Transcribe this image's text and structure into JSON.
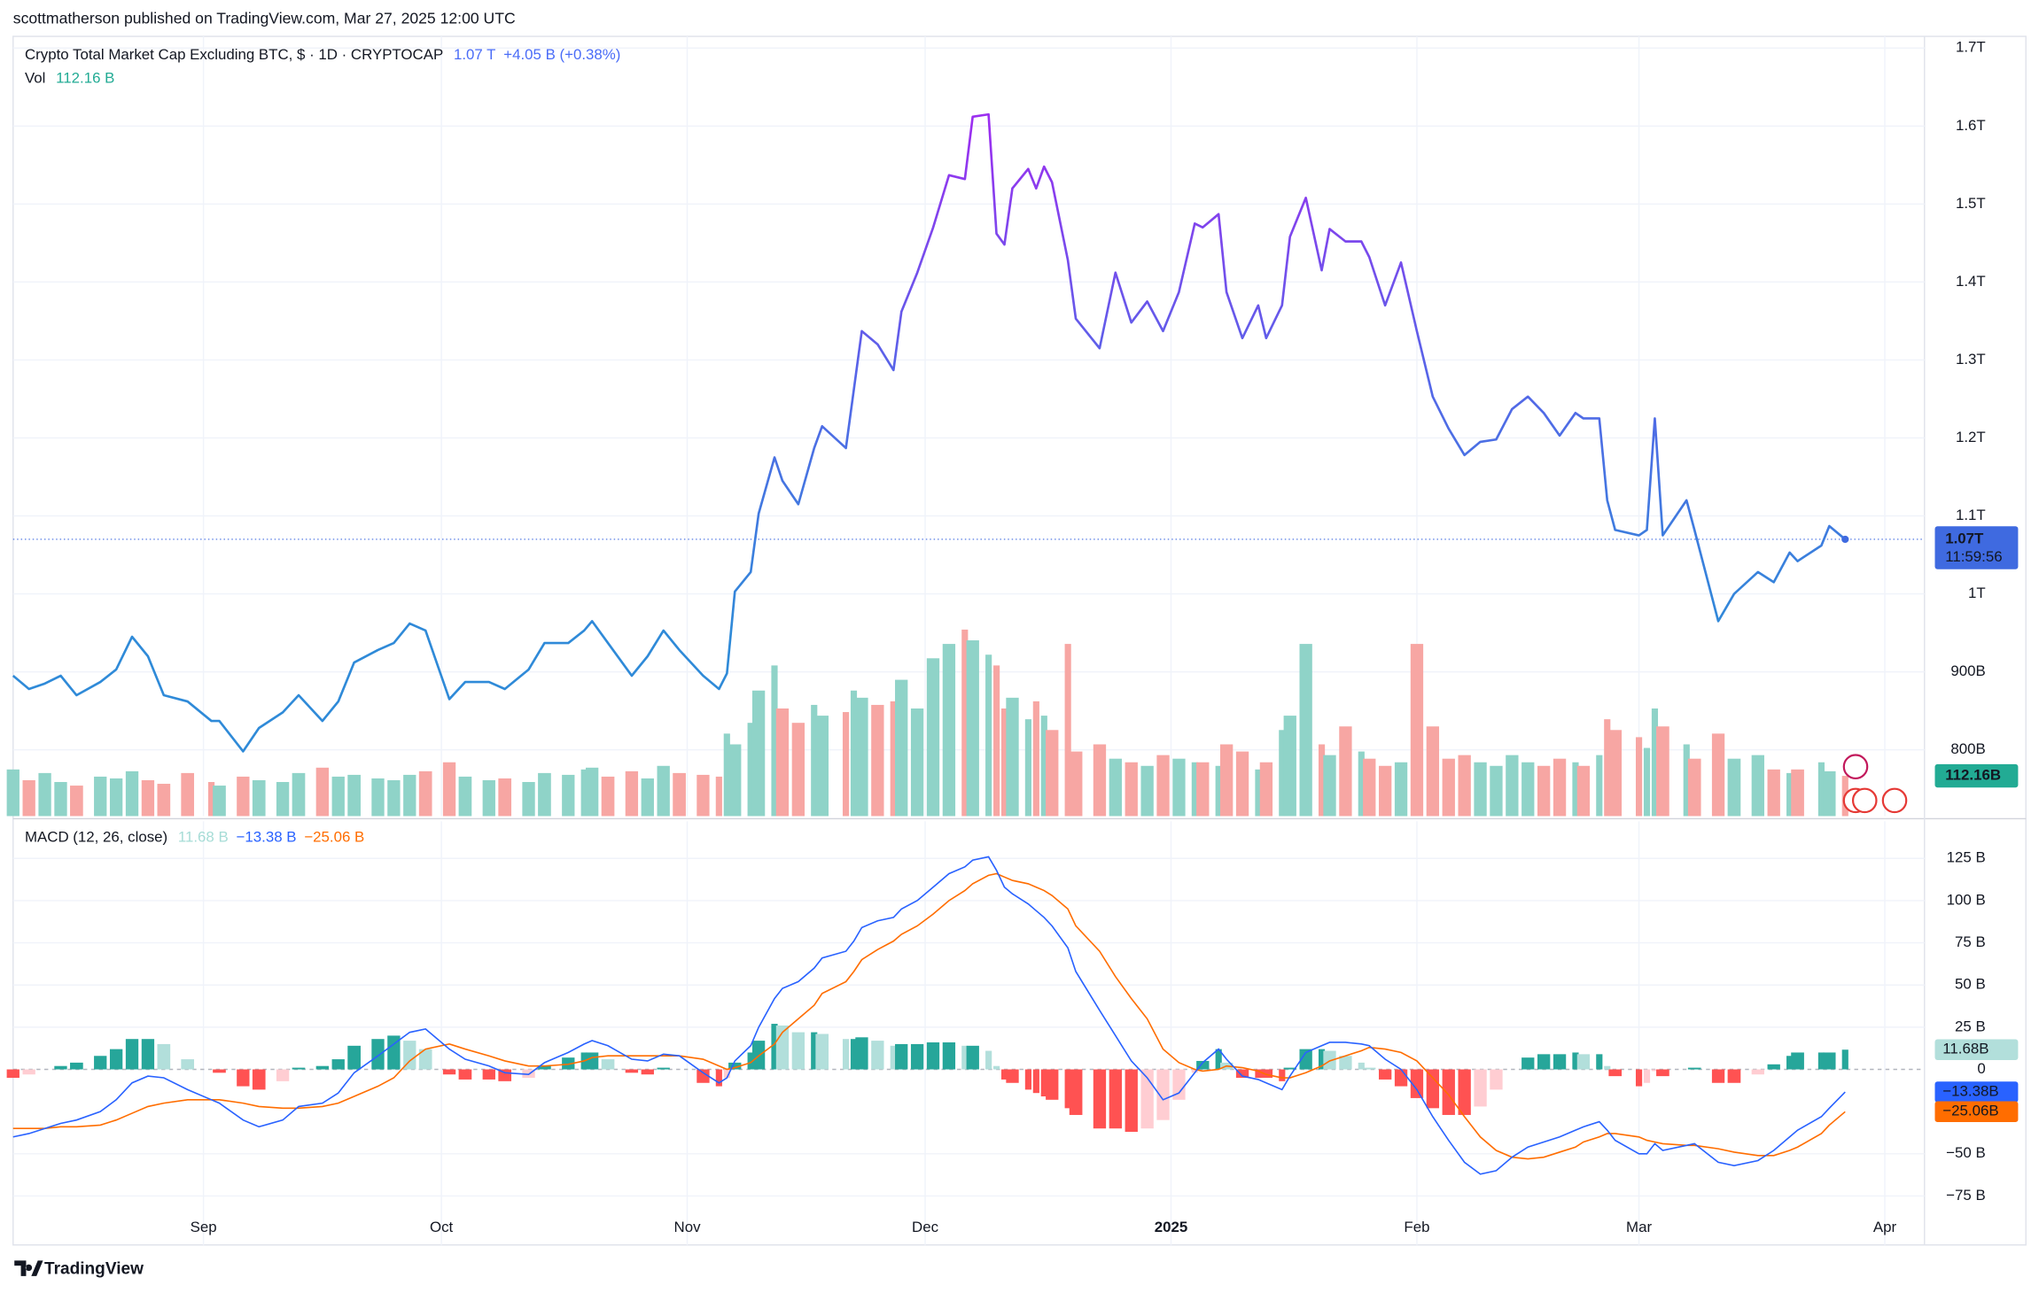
{
  "header": {
    "publisher": "scottmatherson published on TradingView.com, Mar 27, 2025 12:00 UTC",
    "brand": "TradingView"
  },
  "chart_data": [
    {
      "type": "line",
      "title": "Crypto Total Market Cap Excluding BTC, $ · 1D · CRYPTOCAP",
      "last_label": "1.07 T",
      "change_label": "+4.05 B (+0.38%)",
      "tag_label": "1.07T",
      "countdown": "11:59:56",
      "tag_color": "#3f6ae0",
      "colors": [
        "#2f8ad8",
        "#5566e8",
        "#9b2ff0"
      ],
      "x": [
        "2024-08-08",
        "2024-08-10",
        "2024-08-12",
        "2024-08-14",
        "2024-08-16",
        "2024-08-19",
        "2024-08-21",
        "2024-08-23",
        "2024-08-25",
        "2024-08-27",
        "2024-08-30",
        "2024-09-02",
        "2024-09-03",
        "2024-09-06",
        "2024-09-08",
        "2024-09-11",
        "2024-09-13",
        "2024-09-16",
        "2024-09-18",
        "2024-09-20",
        "2024-09-23",
        "2024-09-25",
        "2024-09-27",
        "2024-09-29",
        "2024-10-02",
        "2024-10-04",
        "2024-10-07",
        "2024-10-09",
        "2024-10-12",
        "2024-10-14",
        "2024-10-17",
        "2024-10-19",
        "2024-10-20",
        "2024-10-22",
        "2024-10-25",
        "2024-10-27",
        "2024-10-29",
        "2024-10-31",
        "2024-11-03",
        "2024-11-05",
        "2024-11-06",
        "2024-11-07",
        "2024-11-09",
        "2024-11-10",
        "2024-11-12",
        "2024-11-13",
        "2024-11-15",
        "2024-11-17",
        "2024-11-18",
        "2024-11-21",
        "2024-11-22",
        "2024-11-23",
        "2024-11-25",
        "2024-11-27",
        "2024-11-28",
        "2024-11-30",
        "2024-12-02",
        "2024-12-04",
        "2024-12-06",
        "2024-12-07",
        "2024-12-09",
        "2024-12-10",
        "2024-12-11",
        "2024-12-12",
        "2024-12-14",
        "2024-12-15",
        "2024-12-16",
        "2024-12-17",
        "2024-12-19",
        "2024-12-20",
        "2024-12-23",
        "2024-12-25",
        "2024-12-27",
        "2024-12-29",
        "2024-12-31",
        "2025-01-02",
        "2025-01-04",
        "2025-01-05",
        "2025-01-07",
        "2025-01-08",
        "2025-01-10",
        "2025-01-12",
        "2025-01-13",
        "2025-01-15",
        "2025-01-16",
        "2025-01-18",
        "2025-01-20",
        "2025-01-21",
        "2025-01-23",
        "2025-01-25",
        "2025-01-26",
        "2025-01-28",
        "2025-01-30",
        "2025-02-01",
        "2025-02-03",
        "2025-02-05",
        "2025-02-07",
        "2025-02-09",
        "2025-02-11",
        "2025-02-13",
        "2025-02-15",
        "2025-02-17",
        "2025-02-19",
        "2025-02-21",
        "2025-02-22",
        "2025-02-24",
        "2025-02-25",
        "2025-02-26",
        "2025-03-01",
        "2025-03-02",
        "2025-03-03",
        "2025-03-04",
        "2025-03-07",
        "2025-03-08",
        "2025-03-11",
        "2025-03-13",
        "2025-03-16",
        "2025-03-18",
        "2025-03-20",
        "2025-03-21",
        "2025-03-24",
        "2025-03-25",
        "2025-03-27"
      ],
      "values": [
        895,
        878,
        885,
        895,
        870,
        887,
        903,
        945,
        920,
        870,
        862,
        837,
        837,
        798,
        828,
        848,
        870,
        837,
        862,
        912,
        928,
        937,
        962,
        953,
        865,
        887,
        887,
        878,
        903,
        937,
        937,
        953,
        965,
        937,
        895,
        920,
        953,
        928,
        895,
        878,
        898,
        1003,
        1028,
        1103,
        1175,
        1145,
        1115,
        1187,
        1215,
        1187,
        1262,
        1337,
        1320,
        1287,
        1362,
        1412,
        1470,
        1537,
        1532,
        1612,
        1615,
        1462,
        1448,
        1520,
        1545,
        1520,
        1548,
        1528,
        1428,
        1353,
        1315,
        1412,
        1348,
        1375,
        1337,
        1387,
        1475,
        1470,
        1487,
        1387,
        1328,
        1370,
        1328,
        1370,
        1458,
        1508,
        1415,
        1468,
        1452,
        1452,
        1432,
        1370,
        1425,
        1337,
        1253,
        1212,
        1178,
        1195,
        1198,
        1237,
        1253,
        1232,
        1203,
        1232,
        1225,
        1225,
        1120,
        1082,
        1075,
        1082,
        1225,
        1075,
        1120,
        1082,
        965,
        1000,
        1028,
        1015,
        1053,
        1042,
        1062,
        1087,
        1070
      ],
      "xlim": [
        "2024-08-08",
        "2025-04-06"
      ],
      "xticks": [
        {
          "value": "2024-09-01",
          "label": "Sep"
        },
        {
          "value": "2024-10-01",
          "label": "Oct"
        },
        {
          "value": "2024-11-01",
          "label": "Nov"
        },
        {
          "value": "2024-12-01",
          "label": "Dec"
        },
        {
          "value": "2025-01-01",
          "label": "2025"
        },
        {
          "value": "2025-02-01",
          "label": "Feb"
        },
        {
          "value": "2025-03-01",
          "label": "Mar"
        },
        {
          "value": "2025-04-01",
          "label": "Apr"
        }
      ],
      "ylim": [
        715,
        1715
      ],
      "yticks": [
        {
          "value": 1700,
          "label": "1.7T"
        },
        {
          "value": 1600,
          "label": "1.6T"
        },
        {
          "value": 1500,
          "label": "1.5T"
        },
        {
          "value": 1400,
          "label": "1.4T"
        },
        {
          "value": 1300,
          "label": "1.3T"
        },
        {
          "value": 1200,
          "label": "1.2T"
        },
        {
          "value": 1100,
          "label": "1.1T"
        },
        {
          "value": 1000,
          "label": "1T"
        },
        {
          "value": 900,
          "label": "900B"
        },
        {
          "value": 800,
          "label": "800B"
        }
      ],
      "grid": true
    },
    {
      "type": "bar",
      "title": "Vol",
      "last_label": "112.16 B",
      "tag_label": "112.16B",
      "tag_color": "#22ab94",
      "up_color": "#8fd3c8",
      "down_color": "#f7a6a3",
      "values": [
        130,
        100,
        120,
        95,
        85,
        110,
        105,
        125,
        100,
        90,
        120,
        95,
        85,
        110,
        100,
        95,
        120,
        135,
        110,
        115,
        105,
        100,
        115,
        125,
        150,
        110,
        100,
        105,
        95,
        120,
        115,
        130,
        135,
        110,
        125,
        105,
        140,
        120,
        115,
        110,
        230,
        200,
        260,
        350,
        420,
        300,
        260,
        310,
        280,
        290,
        350,
        330,
        310,
        320,
        380,
        300,
        440,
        480,
        520,
        490,
        450,
        420,
        300,
        330,
        270,
        320,
        280,
        240,
        480,
        180,
        200,
        160,
        150,
        140,
        170,
        160,
        150,
        150,
        140,
        200,
        180,
        130,
        150,
        240,
        280,
        480,
        200,
        170,
        250,
        180,
        160,
        140,
        150,
        480,
        250,
        160,
        170,
        150,
        140,
        170,
        150,
        140,
        160,
        150,
        140,
        170,
        270,
        240,
        220,
        190,
        300,
        250,
        200,
        160,
        230,
        160,
        170,
        130,
        120,
        130,
        150,
        125,
        112.16
      ]
    },
    {
      "type": "macd",
      "title": "MACD (12, 26, close)",
      "histogram": {
        "colors": [
          "#26a69a",
          "#b2dfdb",
          "#ffcdd2",
          "#ff5252"
        ],
        "last_label": "11.68 B",
        "tag_label": "11.68B",
        "tag_color": "#b2dfdb",
        "values": [
          -5,
          -3,
          0,
          2,
          4,
          8,
          12,
          18,
          18,
          15,
          6,
          0,
          -2,
          -10,
          -12,
          -7,
          1,
          2,
          6,
          14,
          18,
          20,
          17,
          12,
          -3,
          -6,
          -6,
          -7,
          -5,
          2,
          7,
          10,
          10,
          6,
          -2,
          -3,
          1,
          0,
          -8,
          -10,
          -5,
          4,
          10,
          17,
          27,
          26,
          22,
          22,
          21,
          18,
          18,
          19,
          17,
          14,
          15,
          15,
          16,
          16,
          14,
          14,
          11,
          2,
          -6,
          -8,
          -12,
          -14,
          -16,
          -18,
          -23,
          -27,
          -35,
          -35,
          -37,
          -35,
          -30,
          -18,
          -2,
          5,
          12,
          4,
          -5,
          -5,
          -5,
          -7,
          1,
          12,
          12,
          11,
          8,
          4,
          1,
          -6,
          -10,
          -17,
          -23,
          -27,
          -27,
          -22,
          -12,
          0,
          7,
          9,
          9,
          10,
          9,
          9,
          2,
          -4,
          -10,
          -8,
          -1,
          -4,
          0,
          1,
          -8,
          -8,
          -3,
          3,
          8,
          10,
          10,
          10,
          11.68
        ]
      },
      "macd": {
        "color": "#2962ff",
        "last_label": "−13.38 B",
        "tag_label": "−13.38B",
        "values": [
          -40,
          -38,
          -35,
          -32,
          -30,
          -25,
          -18,
          -8,
          -4,
          -5,
          -12,
          -18,
          -20,
          -30,
          -34,
          -30,
          -22,
          -20,
          -14,
          -2,
          8,
          15,
          22,
          24,
          12,
          6,
          2,
          -2,
          -3,
          4,
          10,
          15,
          17,
          14,
          6,
          5,
          9,
          8,
          -2,
          -8,
          -5,
          5,
          14,
          25,
          42,
          48,
          52,
          60,
          66,
          70,
          76,
          84,
          88,
          90,
          95,
          100,
          108,
          116,
          120,
          124,
          126,
          118,
          108,
          104,
          98,
          94,
          90,
          85,
          72,
          58,
          35,
          20,
          5,
          -5,
          -18,
          -14,
          -2,
          4,
          12,
          6,
          -4,
          -6,
          -8,
          -12,
          -4,
          10,
          14,
          16,
          16,
          15,
          14,
          6,
          0,
          -12,
          -28,
          -42,
          -55,
          -62,
          -60,
          -52,
          -46,
          -43,
          -40,
          -36,
          -34,
          -31,
          -36,
          -42,
          -50,
          -50,
          -44,
          -48,
          -45,
          -44,
          -55,
          -57,
          -54,
          -48,
          -40,
          -36,
          -28,
          -23,
          -13.38
        ]
      },
      "signal": {
        "color": "#ff6d00",
        "last_label": "−25.06 B",
        "tag_label": "−25.06B",
        "values": [
          -35,
          -35,
          -35,
          -34,
          -34,
          -33,
          -30,
          -26,
          -22,
          -20,
          -18,
          -18,
          -18,
          -20,
          -22,
          -23,
          -23,
          -22,
          -20,
          -16,
          -10,
          -5,
          5,
          12,
          15,
          12,
          8,
          5,
          2,
          2,
          3,
          5,
          7,
          8,
          8,
          8,
          8,
          8,
          6,
          2,
          0,
          1,
          4,
          8,
          15,
          22,
          30,
          38,
          45,
          52,
          58,
          65,
          71,
          76,
          80,
          85,
          92,
          100,
          106,
          110,
          115,
          116,
          114,
          112,
          110,
          108,
          106,
          103,
          95,
          85,
          70,
          55,
          42,
          30,
          12,
          4,
          0,
          -1,
          0,
          2,
          1,
          -1,
          -3,
          -5,
          -5,
          -2,
          2,
          5,
          8,
          11,
          13,
          12,
          10,
          5,
          -5,
          -15,
          -28,
          -40,
          -48,
          -52,
          -53,
          -52,
          -49,
          -46,
          -43,
          -40,
          -38,
          -38,
          -40,
          -42,
          -43,
          -44,
          -45,
          -45,
          -47,
          -49,
          -51,
          -51,
          -48,
          -46,
          -38,
          -33,
          -25.06
        ]
      },
      "ylim": [
        -104,
        147
      ],
      "yticks": [
        {
          "value": 125,
          "label": "125 B"
        },
        {
          "value": 100,
          "label": "100 B"
        },
        {
          "value": 75,
          "label": "75 B"
        },
        {
          "value": 50,
          "label": "50 B"
        },
        {
          "value": 25,
          "label": "25 B"
        },
        0,
        {
          "value": -50,
          "label": "−50 B"
        },
        {
          "value": -75,
          "label": "−75 B"
        }
      ]
    }
  ]
}
